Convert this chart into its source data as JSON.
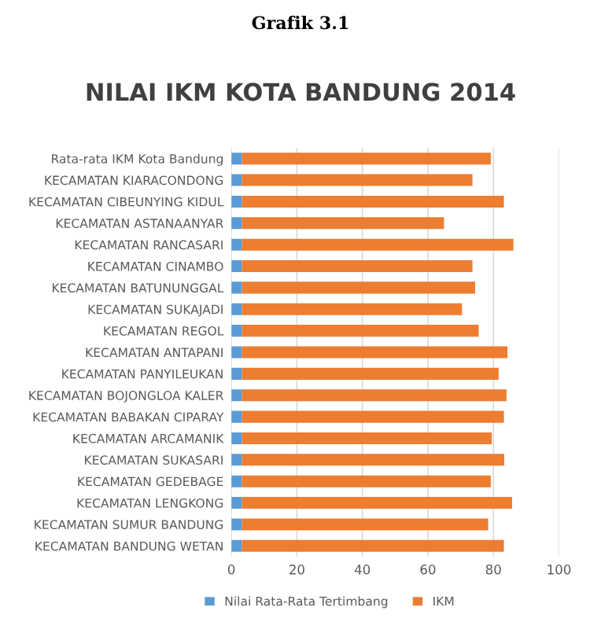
{
  "chart_data": {
    "type": "bar",
    "orientation": "horizontal",
    "title": "NILAI IKM KOTA BANDUNG 2014",
    "annotations": [
      "Grafik 3.1"
    ],
    "categories": [
      "Rata-rata IKM Kota Bandung",
      "KECAMATAN KIARACONDONG",
      "KECAMATAN CIBEUNYING KIDUL",
      "KECAMATAN ASTANAANYAR",
      "KECAMATAN RANCASARI",
      "KECAMATAN CINAMBO",
      "KECAMATAN BATUNUNGGAL",
      "KECAMATAN SUKAJADI",
      "KECAMATAN REGOL",
      "KECAMATAN ANTAPANI",
      "KECAMATAN PANYILEUKAN",
      "KECAMATAN BOJONGLOA KALER",
      "KECAMATAN BABAKAN CIPARAY",
      "KECAMATAN ARCAMANIK",
      "KECAMATAN SUKASARI",
      "KECAMATAN GEDEBAGE",
      "KECAMATAN LENGKONG",
      "KECAMATAN SUMUR BANDUNG",
      "KECAMATAN BANDUNG WETAN"
    ],
    "series": [
      {
        "name": "Nilai Rata-Rata Tertimbang",
        "color": "#5b9bd5",
        "values": [
          3.2,
          3.2,
          3.2,
          3.2,
          3.2,
          3.2,
          3.2,
          3.2,
          3.2,
          3.2,
          3.2,
          3.2,
          3.2,
          3.2,
          3.2,
          3.2,
          3.2,
          3.2,
          3.2
        ]
      },
      {
        "name": "IKM",
        "color": "#ed7d31",
        "values": [
          76.0,
          70.4,
          80.0,
          61.7,
          82.9,
          70.4,
          71.2,
          67.2,
          72.3,
          81.1,
          78.4,
          80.8,
          80.0,
          76.3,
          80.1,
          76.0,
          82.5,
          75.2,
          80.0
        ]
      }
    ],
    "stacked": true,
    "xlim": [
      0,
      100
    ],
    "xticks": [
      0,
      20,
      40,
      60,
      80,
      100
    ],
    "grid": "x",
    "legend": "bottom"
  }
}
